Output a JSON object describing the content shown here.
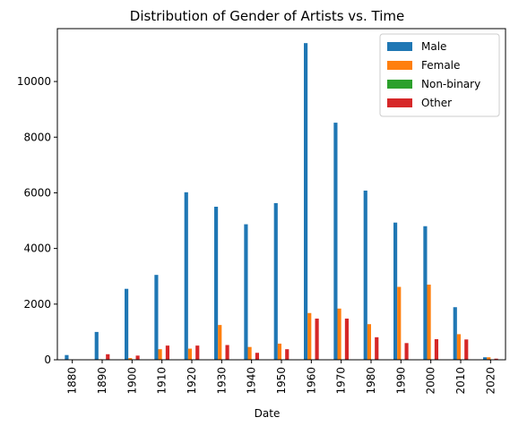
{
  "chart_data": {
    "type": "bar",
    "title": "Distribution of Gender of Artists vs. Time",
    "xlabel": "Date",
    "ylabel": "",
    "ylim": [
      0,
      11900
    ],
    "yticks": [
      0,
      2000,
      4000,
      6000,
      8000,
      10000
    ],
    "categories": [
      "1880",
      "1890",
      "1900",
      "1910",
      "1920",
      "1930",
      "1940",
      "1950",
      "1960",
      "1970",
      "1980",
      "1990",
      "2000",
      "2010",
      "2020"
    ],
    "series": [
      {
        "name": "Male",
        "color": "#1f77b4",
        "values": [
          170,
          1000,
          2550,
          3050,
          6020,
          5500,
          4870,
          5630,
          11380,
          8520,
          6080,
          4930,
          4800,
          1890,
          90
        ]
      },
      {
        "name": "Female",
        "color": "#ff7f0e",
        "values": [
          0,
          20,
          60,
          380,
          400,
          1250,
          460,
          580,
          1680,
          1840,
          1280,
          2620,
          2700,
          920,
          90
        ]
      },
      {
        "name": "Non-binary",
        "color": "#2ca02c",
        "values": [
          0,
          0,
          0,
          0,
          0,
          0,
          0,
          0,
          0,
          0,
          0,
          5,
          10,
          10,
          5
        ]
      },
      {
        "name": "Other",
        "color": "#d62728",
        "values": [
          10,
          200,
          150,
          510,
          510,
          530,
          250,
          380,
          1480,
          1480,
          810,
          600,
          740,
          730,
          40
        ]
      }
    ],
    "legend_position": "top-right",
    "grid": false
  }
}
